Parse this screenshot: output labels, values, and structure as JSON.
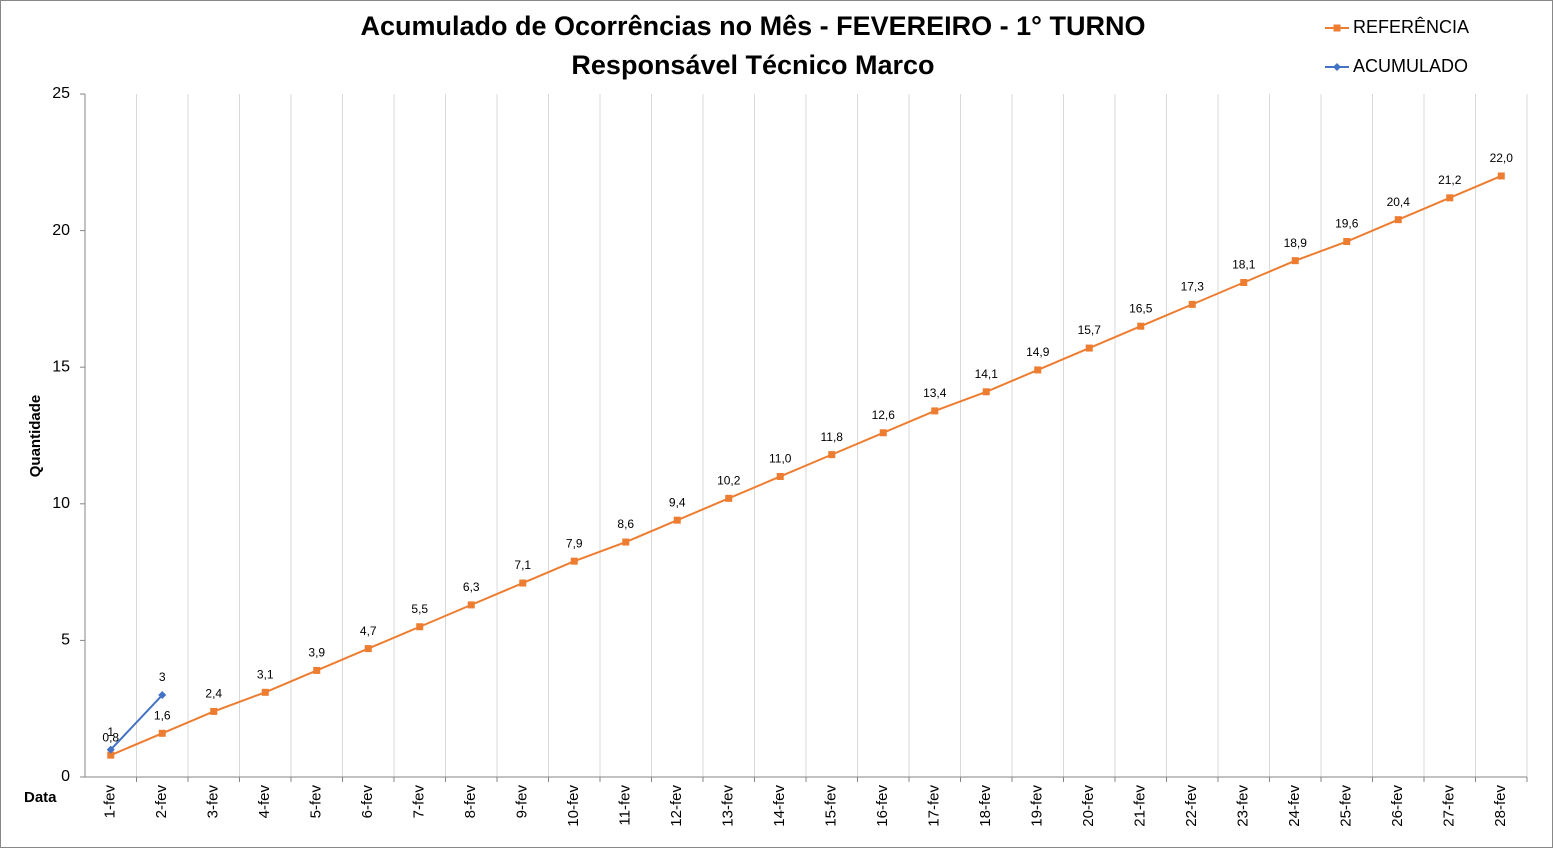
{
  "chart_data": {
    "type": "line",
    "title": "Acumulado de Ocorrências no Mês - FEVEREIRO - 1° TURNO",
    "subtitle": "Responsável Técnico Marco",
    "y_label": "Quantidade",
    "x_label": "Data",
    "categories": [
      "1-fev",
      "2-fev",
      "3-fev",
      "4-fev",
      "5-fev",
      "6-fev",
      "7-fev",
      "8-fev",
      "9-fev",
      "10-fev",
      "11-fev",
      "12-fev",
      "13-fev",
      "14-fev",
      "15-fev",
      "16-fev",
      "17-fev",
      "18-fev",
      "19-fev",
      "20-fev",
      "21-fev",
      "22-fev",
      "23-fev",
      "24-fev",
      "25-fev",
      "26-fev",
      "27-fev",
      "28-fev"
    ],
    "series": [
      {
        "name": "REFERÊNCIA",
        "color": "#ed7d31",
        "marker": "square",
        "values": [
          0.8,
          1.6,
          2.4,
          3.1,
          3.9,
          4.7,
          5.5,
          6.3,
          7.1,
          7.9,
          8.6,
          9.4,
          10.2,
          11.0,
          11.8,
          12.6,
          13.4,
          14.1,
          14.9,
          15.7,
          16.5,
          17.3,
          18.1,
          18.9,
          19.6,
          20.4,
          21.2,
          22.0
        ],
        "value_labels": [
          "0,8",
          "1,6",
          "2,4",
          "3,1",
          "3,9",
          "4,7",
          "5,5",
          "6,3",
          "7,1",
          "7,9",
          "8,6",
          "9,4",
          "10,2",
          "11,0",
          "11,8",
          "12,6",
          "13,4",
          "14,1",
          "14,9",
          "15,7",
          "16,5",
          "17,3",
          "18,1",
          "18,9",
          "19,6",
          "20,4",
          "21,2",
          "22,0"
        ]
      },
      {
        "name": "ACUMULADO",
        "color": "#4472c4",
        "marker": "diamond",
        "values": [
          1,
          3,
          null,
          null,
          null,
          null,
          null,
          null,
          null,
          null,
          null,
          null,
          null,
          null,
          null,
          null,
          null,
          null,
          null,
          null,
          null,
          null,
          null,
          null,
          null,
          null,
          null,
          null
        ]
      }
    ],
    "ylim": [
      0,
      25
    ],
    "yticks": [
      0,
      5,
      10,
      15,
      20,
      25
    ],
    "grid": "vertical",
    "legend": "top-right"
  }
}
